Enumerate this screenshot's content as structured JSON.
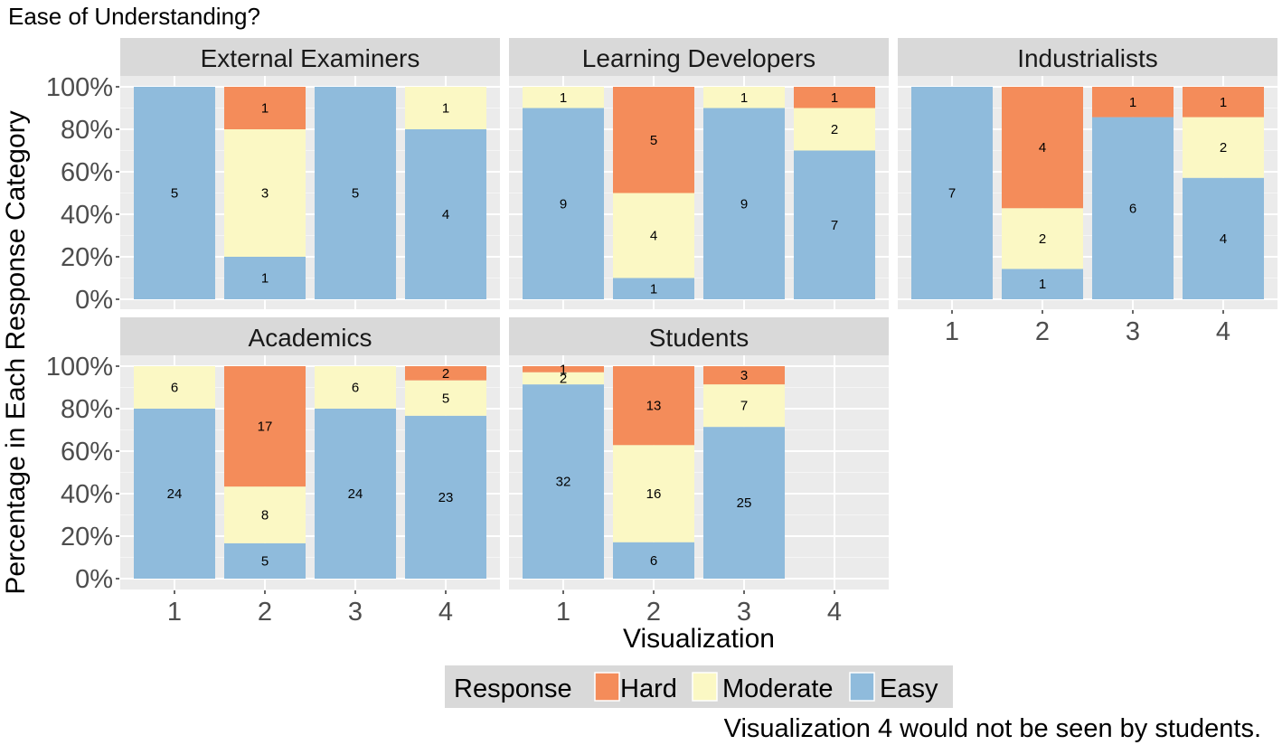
{
  "chart_data": {
    "type": "bar",
    "stacked": true,
    "position": "fill",
    "title": "Ease of Understanding?",
    "xlabel": "Visualization",
    "ylabel": "Percentage in Each Response Category",
    "ylim": [
      0,
      1
    ],
    "y_ticks": [
      "0%",
      "20%",
      "40%",
      "60%",
      "80%",
      "100%"
    ],
    "categories": [
      "1",
      "2",
      "3",
      "4"
    ],
    "grid": true,
    "legend": {
      "title": "Response",
      "placement": "bottom",
      "entries": [
        {
          "name": "Hard",
          "color": "#f48c5a"
        },
        {
          "name": "Moderate",
          "color": "#fbf8c4"
        },
        {
          "name": "Easy",
          "color": "#8fbbdc"
        }
      ]
    },
    "stack_order": [
      "Easy",
      "Moderate",
      "Hard"
    ],
    "facets": [
      {
        "name": "External Examiners",
        "series": [
          {
            "name": "Hard",
            "values": [
              0,
              1,
              0,
              0
            ]
          },
          {
            "name": "Moderate",
            "values": [
              0,
              3,
              0,
              1
            ]
          },
          {
            "name": "Easy",
            "values": [
              5,
              1,
              5,
              4
            ]
          }
        ]
      },
      {
        "name": "Learning Developers",
        "series": [
          {
            "name": "Hard",
            "values": [
              0,
              5,
              0,
              1
            ]
          },
          {
            "name": "Moderate",
            "values": [
              1,
              4,
              1,
              2
            ]
          },
          {
            "name": "Easy",
            "values": [
              9,
              1,
              9,
              7
            ]
          }
        ]
      },
      {
        "name": "Industrialists",
        "series": [
          {
            "name": "Hard",
            "values": [
              0,
              4,
              1,
              1
            ]
          },
          {
            "name": "Moderate",
            "values": [
              0,
              2,
              0,
              2
            ]
          },
          {
            "name": "Easy",
            "values": [
              7,
              1,
              6,
              4
            ]
          }
        ]
      },
      {
        "name": "Academics",
        "series": [
          {
            "name": "Hard",
            "values": [
              0,
              17,
              0,
              2
            ]
          },
          {
            "name": "Moderate",
            "values": [
              6,
              8,
              6,
              5
            ]
          },
          {
            "name": "Easy",
            "values": [
              24,
              5,
              24,
              23
            ]
          }
        ]
      },
      {
        "name": "Students",
        "series": [
          {
            "name": "Hard",
            "values": [
              1,
              13,
              3,
              0
            ]
          },
          {
            "name": "Moderate",
            "values": [
              2,
              16,
              7,
              0
            ]
          },
          {
            "name": "Easy",
            "values": [
              32,
              6,
              25,
              0
            ]
          }
        ]
      }
    ],
    "caption": "Visualization 4 would not be seen by students."
  }
}
